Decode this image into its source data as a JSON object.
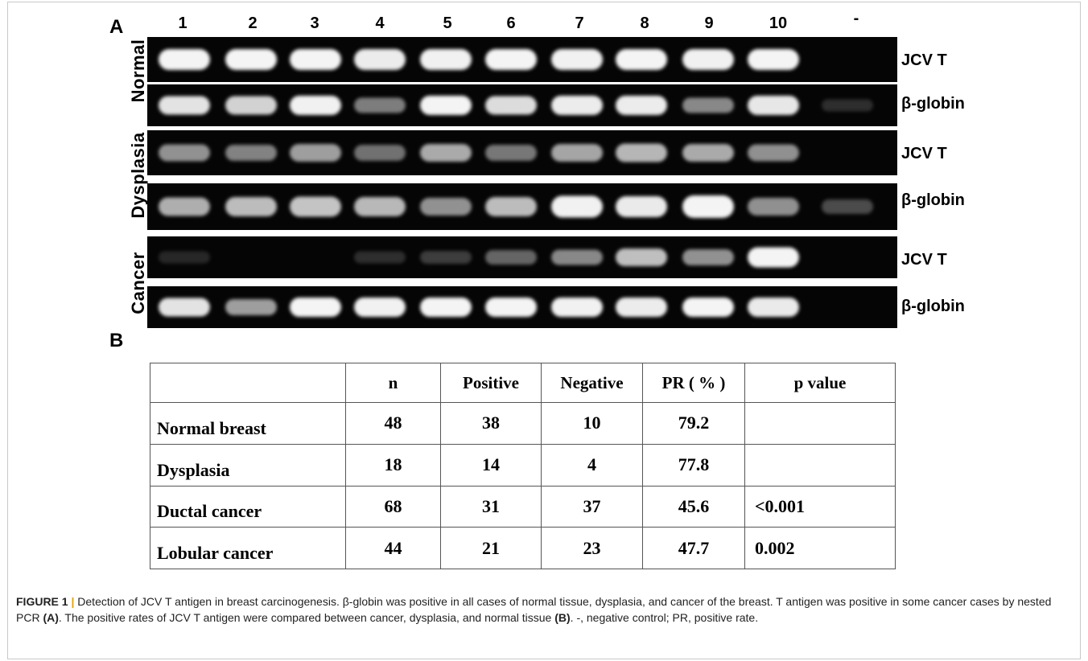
{
  "panel_a": {
    "letter": "A",
    "lanes": [
      "1",
      "2",
      "3",
      "4",
      "5",
      "6",
      "7",
      "8",
      "9",
      "10",
      "-"
    ],
    "groups": [
      {
        "label": "Normal"
      },
      {
        "label": "Dysplasia"
      },
      {
        "label": "Cancer"
      }
    ],
    "gels": [
      {
        "label": "JCV T",
        "intensity": [
          0.95,
          0.95,
          0.93,
          0.9,
          0.92,
          0.96,
          0.92,
          0.93,
          0.92,
          0.94,
          0.0
        ]
      },
      {
        "label": "β-globin",
        "intensity": [
          0.85,
          0.78,
          0.92,
          0.4,
          0.93,
          0.82,
          0.9,
          0.9,
          0.45,
          0.87,
          0.05
        ]
      },
      {
        "label": "JCV T",
        "intensity": [
          0.5,
          0.42,
          0.55,
          0.35,
          0.6,
          0.38,
          0.58,
          0.65,
          0.6,
          0.48,
          0.0
        ]
      },
      {
        "label": "β-globin",
        "intensity": [
          0.62,
          0.68,
          0.72,
          0.66,
          0.5,
          0.68,
          0.92,
          0.88,
          0.98,
          0.48,
          0.18
        ]
      },
      {
        "label": "JCV T",
        "intensity": [
          0.02,
          0.0,
          0.0,
          0.05,
          0.12,
          0.3,
          0.45,
          0.7,
          0.5,
          1.0,
          0.0
        ]
      },
      {
        "label": "β-globin",
        "intensity": [
          0.85,
          0.55,
          0.95,
          0.92,
          0.95,
          0.93,
          0.92,
          0.9,
          0.93,
          0.88,
          0.0
        ]
      }
    ]
  },
  "panel_b": {
    "letter": "B",
    "headers": [
      "",
      "n",
      "Positive",
      "Negative",
      "PR ( % )",
      "p value"
    ],
    "rows": [
      {
        "name": "Normal breast",
        "n": "48",
        "positive": "38",
        "negative": "10",
        "pr": "79.2",
        "p": ""
      },
      {
        "name": "Dysplasia",
        "n": "18",
        "positive": "14",
        "negative": "4",
        "pr": "77.8",
        "p": ""
      },
      {
        "name": "Ductal cancer",
        "n": "68",
        "positive": "31",
        "negative": "37",
        "pr": "45.6",
        "p": "<0.001"
      },
      {
        "name": "Lobular cancer",
        "n": "44",
        "positive": "21",
        "negative": "23",
        "pr": "47.7",
        "p": "0.002"
      }
    ]
  },
  "caption": {
    "figure_label": "FIGURE 1",
    "separator": "|",
    "part1": " Detection of JCV T antigen in breast carcinogenesis. β-globin was positive in all cases of normal tissue, dysplasia, and cancer of the breast. T antigen was positive in some cancer cases by nested PCR ",
    "ref_a": "(A)",
    "part2": ". The positive rates of JCV T antigen were compared between cancer, dysplasia, and normal tissue ",
    "ref_b": "(B)",
    "part3": ". -, negative control; PR, positive rate."
  }
}
